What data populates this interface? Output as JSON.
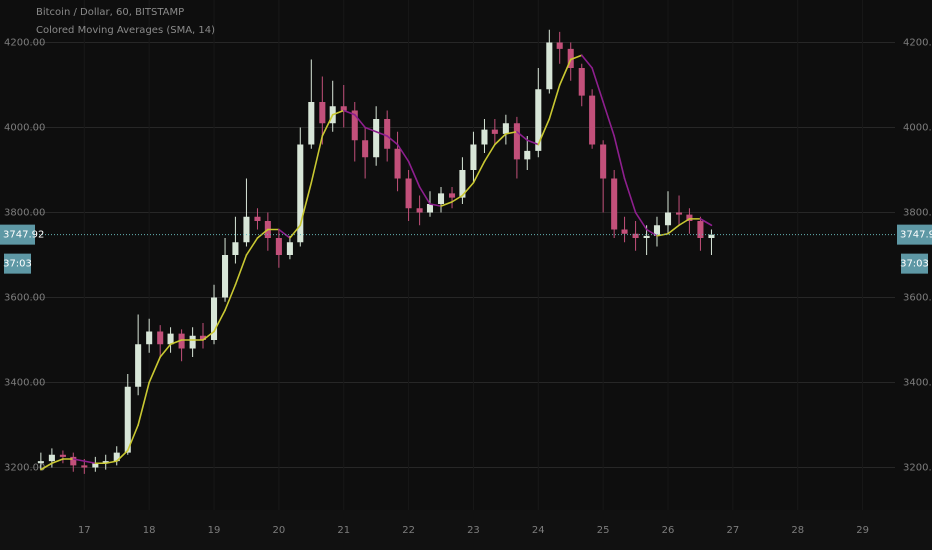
{
  "chart_data": {
    "type": "candlestick",
    "title": "Bitcoin / Dollar, 60, BITSTAMP",
    "subtitle": "Colored Moving Averages (SMA, 14)",
    "last_price": 3747.92,
    "countdown": "37:03",
    "up_color": "#d8e6d8",
    "down_color": "#c2507a",
    "grid": true,
    "xlim": [
      15.7,
      29.5
    ],
    "xticks": [
      17,
      18,
      19,
      20,
      21,
      22,
      23,
      24,
      25,
      26,
      27,
      28,
      29
    ],
    "ylim": [
      3100,
      4300
    ],
    "yticks": [
      {
        "value": 3200,
        "label": "3200.00"
      },
      {
        "value": 3400,
        "label": "3400.00"
      },
      {
        "value": 3600,
        "label": "3600.00"
      },
      {
        "value": 3800,
        "label": "3800.00"
      },
      {
        "value": 4000,
        "label": "4000.00"
      },
      {
        "value": 4200,
        "label": "4200.00"
      }
    ],
    "x": [
      16.33,
      16.5,
      16.67,
      16.83,
      17,
      17.17,
      17.33,
      17.5,
      17.67,
      17.83,
      18,
      18.17,
      18.33,
      18.5,
      18.67,
      18.83,
      19,
      19.17,
      19.33,
      19.5,
      19.67,
      19.83,
      20,
      20.17,
      20.33,
      20.5,
      20.67,
      20.83,
      21,
      21.17,
      21.33,
      21.5,
      21.67,
      21.83,
      22,
      22.17,
      22.33,
      22.5,
      22.67,
      22.83,
      23,
      23.17,
      23.33,
      23.5,
      23.67,
      23.83,
      24,
      24.17,
      24.33,
      24.5,
      24.67,
      24.83,
      25,
      25.17,
      25.33,
      25.5,
      25.67,
      25.83,
      26,
      26.17,
      26.33,
      26.5,
      26.67
    ],
    "open": [
      3210,
      3215,
      3230,
      3225,
      3205,
      3200,
      3210,
      3215,
      3235,
      3390,
      3490,
      3520,
      3490,
      3515,
      3480,
      3510,
      3500,
      3600,
      3700,
      3730,
      3790,
      3780,
      3740,
      3700,
      3730,
      3960,
      4060,
      4010,
      4050,
      4040,
      3970,
      3930,
      4020,
      3950,
      3880,
      3810,
      3800,
      3820,
      3845,
      3835,
      3900,
      3960,
      3995,
      3985,
      4010,
      3925,
      3945,
      4090,
      4200,
      4185,
      4140,
      4075,
      3960,
      3880,
      3760,
      3750,
      3740,
      3745,
      3770,
      3800,
      3795,
      3780,
      3740
    ],
    "high": [
      3235,
      3245,
      3240,
      3235,
      3220,
      3225,
      3230,
      3250,
      3420,
      3560,
      3550,
      3535,
      3530,
      3525,
      3530,
      3540,
      3630,
      3740,
      3790,
      3880,
      3810,
      3800,
      3760,
      3745,
      4000,
      4160,
      4120,
      4110,
      4100,
      4060,
      4000,
      4050,
      4040,
      3990,
      3900,
      3840,
      3850,
      3860,
      3860,
      3930,
      3990,
      4020,
      4020,
      4030,
      4025,
      3980,
      4140,
      4230,
      4225,
      4200,
      4150,
      4090,
      3970,
      3900,
      3790,
      3780,
      3770,
      3790,
      3850,
      3840,
      3810,
      3790,
      3760
    ],
    "low": [
      3195,
      3200,
      3210,
      3190,
      3185,
      3190,
      3195,
      3205,
      3230,
      3370,
      3470,
      3460,
      3470,
      3450,
      3460,
      3480,
      3490,
      3590,
      3680,
      3720,
      3760,
      3710,
      3670,
      3690,
      3720,
      3950,
      3960,
      3990,
      4000,
      3920,
      3880,
      3910,
      3920,
      3850,
      3780,
      3770,
      3790,
      3800,
      3810,
      3820,
      3870,
      3940,
      3960,
      3960,
      3880,
      3900,
      3930,
      4080,
      4150,
      4110,
      4050,
      3950,
      3800,
      3740,
      3730,
      3710,
      3700,
      3720,
      3750,
      3770,
      3750,
      3710,
      3700
    ],
    "close": [
      3215,
      3230,
      3225,
      3205,
      3200,
      3210,
      3215,
      3235,
      3390,
      3490,
      3520,
      3490,
      3515,
      3480,
      3510,
      3500,
      3600,
      3700,
      3730,
      3790,
      3780,
      3740,
      3700,
      3730,
      3960,
      4060,
      4010,
      4050,
      4040,
      3970,
      3930,
      4020,
      3950,
      3880,
      3810,
      3800,
      3820,
      3845,
      3835,
      3900,
      3960,
      3995,
      3985,
      4010,
      3925,
      3945,
      4090,
      4200,
      4185,
      4140,
      4075,
      3960,
      3880,
      3760,
      3750,
      3740,
      3745,
      3770,
      3800,
      3795,
      3780,
      3740,
      3748
    ],
    "sma": {
      "rising_color": "#c9c832",
      "falling_color": "#8e1f8e",
      "values": [
        3195,
        3210,
        3220,
        3220,
        3215,
        3210,
        3210,
        3215,
        3240,
        3300,
        3400,
        3460,
        3490,
        3500,
        3500,
        3500,
        3520,
        3570,
        3630,
        3700,
        3740,
        3760,
        3760,
        3740,
        3770,
        3870,
        3980,
        4030,
        4040,
        4030,
        4000,
        3990,
        3980,
        3960,
        3920,
        3860,
        3820,
        3815,
        3825,
        3840,
        3870,
        3920,
        3960,
        3985,
        3990,
        3970,
        3960,
        4020,
        4100,
        4160,
        4170,
        4140,
        4060,
        3980,
        3880,
        3800,
        3760,
        3745,
        3750,
        3770,
        3785,
        3785,
        3770
      ]
    }
  }
}
